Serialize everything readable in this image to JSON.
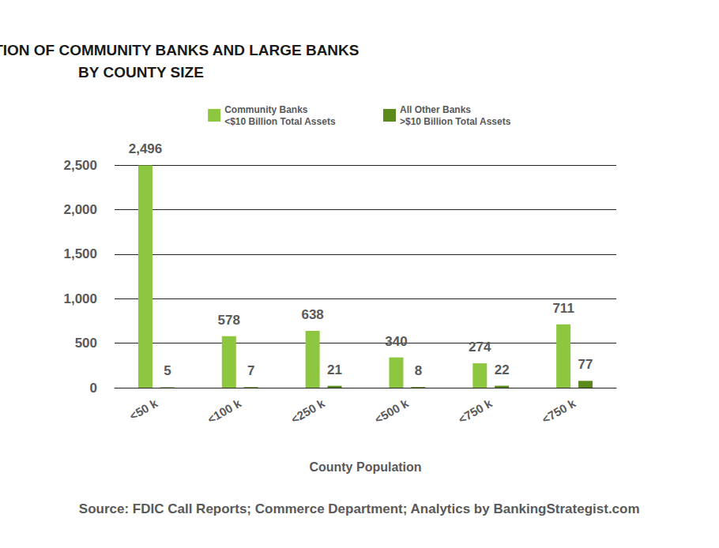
{
  "chart_data": {
    "type": "bar",
    "title": "DISTRIBUTION OF COMMUNITY BANKS AND LARGE BANKS\nBY COUNTY SIZE",
    "x_label": "County Population",
    "annotation": "Source: FDIC Call Reports; Commerce Department; Analytics by BankingStrategist.com",
    "categories": [
      "<50 k",
      "<100 k",
      "<250 k",
      "<500 k",
      "<750 k",
      "<750 k"
    ],
    "series": [
      {
        "name": "Community Banks\n<$10 Billion Total Assets",
        "color": "#8dc63f",
        "values": [
          2496,
          578,
          638,
          340,
          274,
          711
        ],
        "value_labels": [
          "2,496",
          "578",
          "638",
          "340",
          "274",
          "711"
        ]
      },
      {
        "name": "All Other Banks\n>$10 Billion Total Assets",
        "color": "#5b8a1c",
        "values": [
          5,
          7,
          21,
          8,
          22,
          77
        ]
      }
    ],
    "ylim": [
      0,
      2500
    ],
    "yticks": [
      0,
      500,
      {
        "value": 1000,
        "label": "1,000"
      },
      {
        "value": 1500,
        "label": "1,500"
      },
      {
        "value": 2000,
        "label": "2,000"
      },
      {
        "value": 2500,
        "label": "2,500"
      }
    ],
    "grid": true,
    "data_labels": true,
    "legend": "top"
  }
}
